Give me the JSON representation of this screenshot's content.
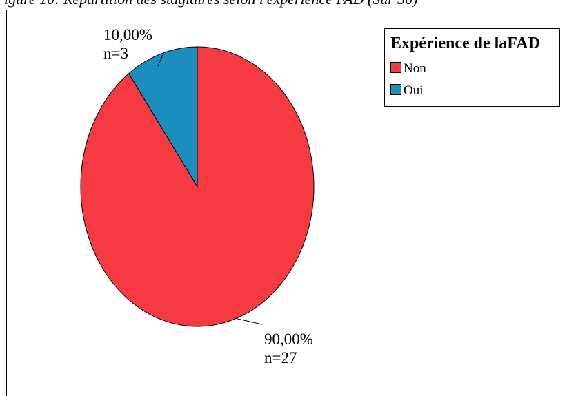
{
  "caption": "igure 10: Répartition des stagiaires selon l'expérience FAD (Sur 30)",
  "chart_data": {
    "type": "pie",
    "legend_title": "Expérience de laFAD",
    "legend_position": "top-right",
    "slices": [
      {
        "label": "Non",
        "percent_text": "90,00%",
        "count_text": "n=27",
        "value": 27,
        "color": "#f53a42"
      },
      {
        "label": "Oui",
        "percent_text": "10,00%",
        "count_text": "n=3",
        "value": 3,
        "color": "#1a8fbf"
      }
    ]
  }
}
